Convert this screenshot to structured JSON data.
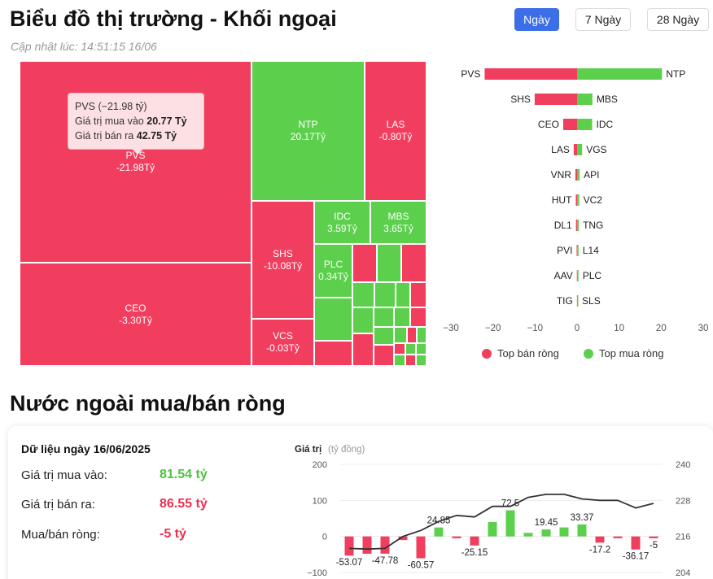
{
  "header": {
    "title": "Biểu đồ thị trường - Khối ngoại",
    "updated": "Cập nhật lúc: 14:51:15 16/06",
    "periods": [
      "Ngày",
      "7 Ngày",
      "28 Ngày"
    ],
    "active_period": "Ngày"
  },
  "colors": {
    "sell": "#f13e5e",
    "buy": "#5cd04c",
    "active": "#3c6ee8"
  },
  "treemap": {
    "tiles": [
      {
        "code": "PVS",
        "value": "-21.98Tỷ",
        "side": "sell"
      },
      {
        "code": "CEO",
        "value": "-3.30Tỷ",
        "side": "sell"
      },
      {
        "code": "NTP",
        "value": "20.17Tỷ",
        "side": "buy"
      },
      {
        "code": "LAS",
        "value": "-0.80Tỷ",
        "side": "sell"
      },
      {
        "code": "SHS",
        "value": "-10.08Tỷ",
        "side": "sell"
      },
      {
        "code": "IDC",
        "value": "3.59Tỷ",
        "side": "buy"
      },
      {
        "code": "MBS",
        "value": "3.65Tỷ",
        "side": "buy"
      },
      {
        "code": "PLC",
        "value": "0.34Tỷ",
        "side": "buy"
      },
      {
        "code": "VCS",
        "value": "-0.03Tỷ",
        "side": "sell"
      }
    ],
    "tooltip": {
      "title": "PVS (−21.98 tỷ)",
      "buy_label": "Giá trị mua vào",
      "buy_value": "20.77 Tỷ",
      "sell_label": "Giá trị bán ra",
      "sell_value": "42.75 Tỷ"
    }
  },
  "legend": {
    "sell": "Top bán ròng",
    "buy": "Top mua ròng"
  },
  "summary": {
    "date_label": "Dữ liệu ngày 16/06/2025",
    "buy_label": "Giá trị mua vào:",
    "buy_value": "81.54 tỷ",
    "sell_label": "Giá trị bán ra:",
    "sell_value": "86.55 tỷ",
    "net_label": "Mua/bán ròng:",
    "net_value": "-5 tỷ"
  },
  "section_title": "Nước ngoài mua/bán ròng",
  "chart_data": [
    {
      "type": "bar",
      "orientation": "horizontal",
      "xlim": [
        -30,
        30
      ],
      "xticks": [
        -30,
        -20,
        -10,
        0,
        10,
        20,
        30
      ],
      "grid": false,
      "legend_position": "bottom",
      "series": [
        {
          "name": "Top bán ròng",
          "categories": [
            "PVS",
            "SHS",
            "CEO",
            "LAS",
            "VNR",
            "HUT",
            "DL1",
            "PVI",
            "AAV",
            "TIG"
          ],
          "values": [
            -21.98,
            -10.08,
            -3.3,
            -0.8,
            -0.4,
            -0.3,
            -0.25,
            -0.1,
            -0.05,
            -0.03
          ]
        },
        {
          "name": "Top mua ròng",
          "categories": [
            "NTP",
            "MBS",
            "IDC",
            "VGS",
            "API",
            "VC2",
            "TNG",
            "L14",
            "PLC",
            "SLS"
          ],
          "values": [
            20.17,
            3.65,
            3.59,
            1.2,
            0.6,
            0.5,
            0.4,
            0.35,
            0.34,
            0.2
          ]
        }
      ]
    },
    {
      "type": "bar",
      "subtype": "bar+line",
      "ylabel": "Giá trị",
      "ylabel_unit": "(tỷ đồng)",
      "ylim": [
        -100,
        200
      ],
      "yticks": [
        -100,
        0,
        100,
        200
      ],
      "ylim_right": [
        204,
        240
      ],
      "yticks_right": [
        204,
        216,
        228,
        240
      ],
      "bars": [
        -53.07,
        -48,
        -47.78,
        -10,
        -60.57,
        24.85,
        -5,
        -25.15,
        40,
        72.5,
        10,
        19.45,
        25,
        33.37,
        -17.2,
        -5,
        -36.17,
        -5
      ],
      "bar_labels": [
        "-53.07",
        "",
        "-47.78",
        "",
        "-60.57",
        "24.85",
        "",
        "-25.15",
        "",
        "72.5",
        "",
        "19.45",
        "",
        "33.37",
        "-17.2",
        "",
        "-36.17",
        "-5"
      ],
      "line": [
        212,
        211.8,
        212,
        216,
        218,
        221,
        223,
        222.5,
        226,
        226,
        229,
        230,
        230,
        228.5,
        228,
        228,
        225.5,
        227
      ]
    }
  ]
}
